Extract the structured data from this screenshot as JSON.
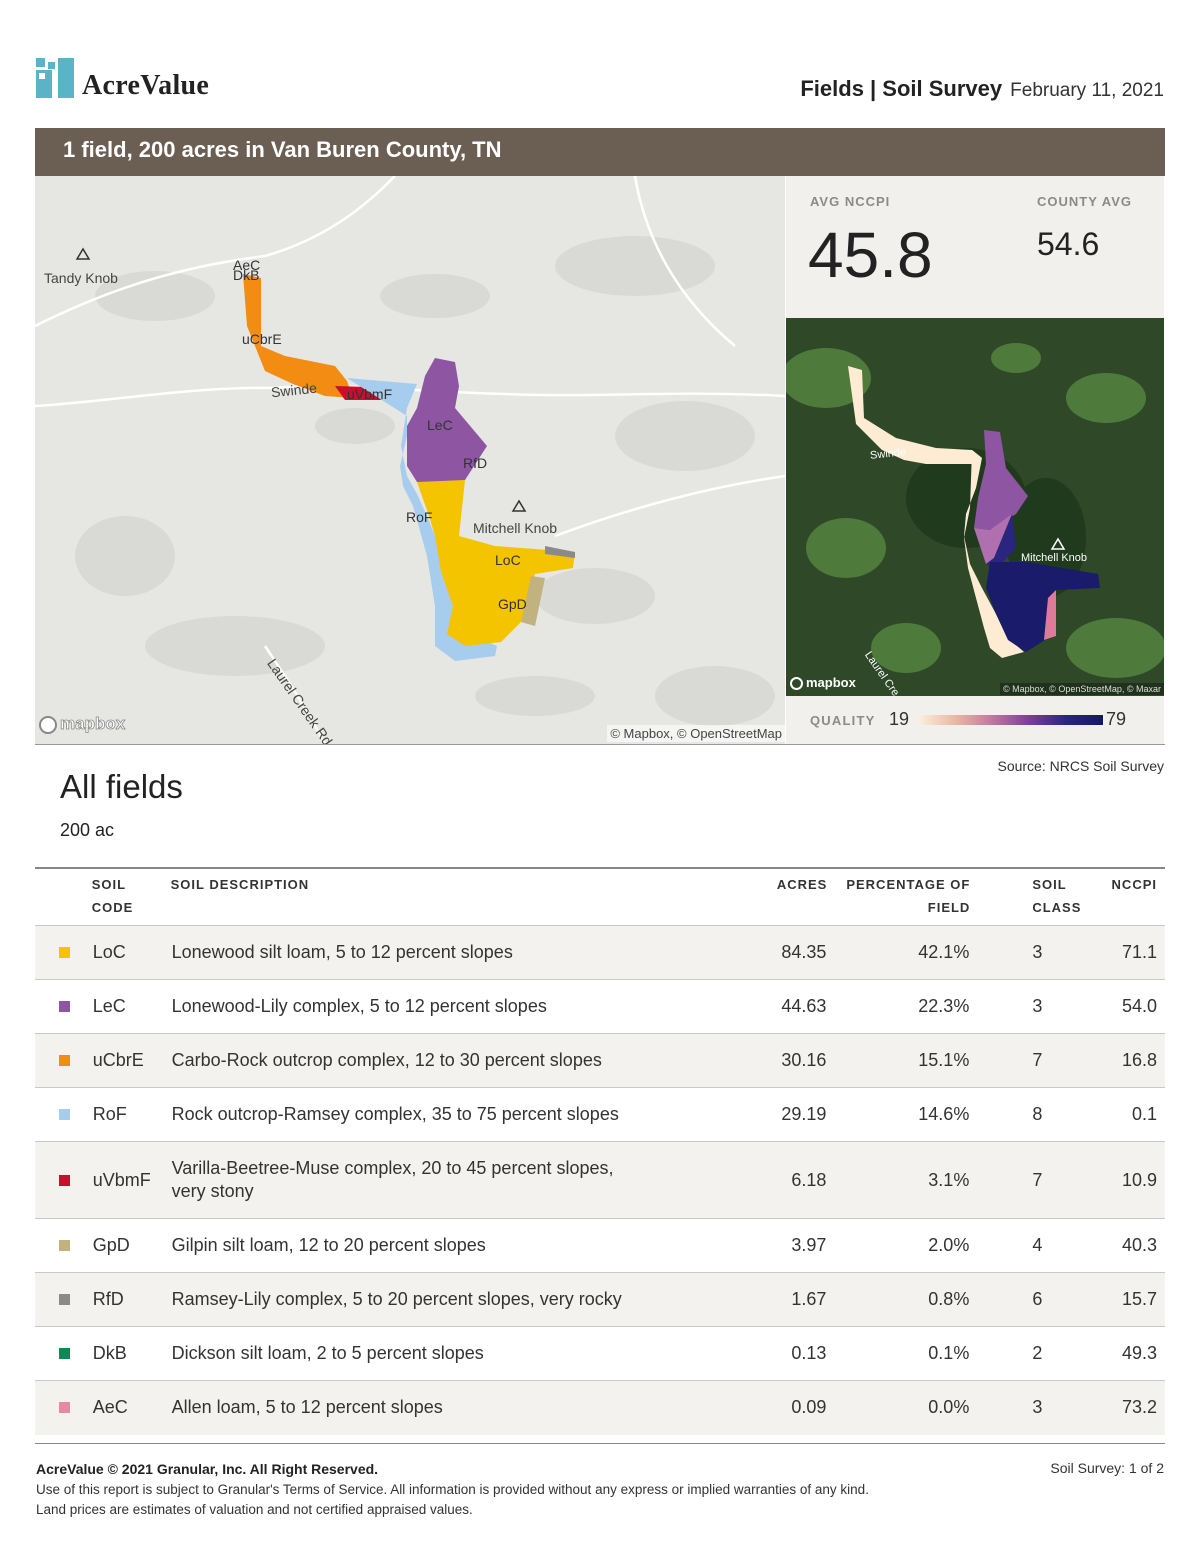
{
  "header": {
    "brand": "AcreValue",
    "section": "Fields | Soil Survey",
    "date": "February 11, 2021"
  },
  "banner": {
    "title": "1 field, 200 acres in Van Buren County, TN"
  },
  "map": {
    "places": [
      "Tandy Knob",
      "Mitchell Knob"
    ],
    "roads": [
      "Swinde",
      "Laurel Creek Rd"
    ],
    "soil_labels": [
      "AeC",
      "DkB",
      "uCbrE",
      "uVbmF",
      "LeC",
      "RfD",
      "RoF",
      "LoC",
      "GpD"
    ],
    "logo": "mapbox",
    "credit": "© Mapbox, © OpenStreetMap"
  },
  "stats": {
    "avg_label": "AVG NCCPI",
    "avg_value": "45.8",
    "county_label": "COUNTY AVG",
    "county_value": "54.6"
  },
  "satellite": {
    "place": "Mitchell Knob",
    "road": "Swinde",
    "road2": "Laurel Cre",
    "logo": "mapbox",
    "credit": "© Mapbox, © OpenStreetMap, © Maxar"
  },
  "quality": {
    "label": "QUALITY",
    "min": "19",
    "max": "79"
  },
  "source": "Source: NRCS Soil Survey",
  "all_fields": {
    "title": "All fields",
    "acres": "200 ac"
  },
  "table": {
    "headers": {
      "code": "SOIL CODE",
      "description": "SOIL DESCRIPTION",
      "acres": "ACRES",
      "percentage": "PERCENTAGE OF FIELD",
      "class": "SOIL CLASS",
      "nccpi": "NCCPI"
    },
    "rows": [
      {
        "color": "#f5c400",
        "code": "LoC",
        "description": "Lonewood silt loam, 5 to 12 percent slopes",
        "acres": "84.35",
        "percentage": "42.1%",
        "class": "3",
        "nccpi": "71.1"
      },
      {
        "color": "#8e55a3",
        "code": "LeC",
        "description": "Lonewood-Lily complex, 5 to 12 percent slopes",
        "acres": "44.63",
        "percentage": "22.3%",
        "class": "3",
        "nccpi": "54.0"
      },
      {
        "color": "#f28c12",
        "code": "uCbrE",
        "description": "Carbo-Rock outcrop complex, 12 to 30 percent slopes",
        "acres": "30.16",
        "percentage": "15.1%",
        "class": "7",
        "nccpi": "16.8"
      },
      {
        "color": "#a7cdee",
        "code": "RoF",
        "description": "Rock outcrop-Ramsey complex, 35 to 75 percent slopes",
        "acres": "29.19",
        "percentage": "14.6%",
        "class": "8",
        "nccpi": "0.1"
      },
      {
        "color": "#c8102e",
        "code": "uVbmF",
        "description": "Varilla-Beetree-Muse complex, 20 to 45 percent slopes, very stony",
        "acres": "6.18",
        "percentage": "3.1%",
        "class": "7",
        "nccpi": "10.9"
      },
      {
        "color": "#c2b27f",
        "code": "GpD",
        "description": "Gilpin silt loam, 12 to 20 percent slopes",
        "acres": "3.97",
        "percentage": "2.0%",
        "class": "4",
        "nccpi": "40.3"
      },
      {
        "color": "#8a8a8a",
        "code": "RfD",
        "description": "Ramsey-Lily complex, 5 to 20 percent slopes, very rocky",
        "acres": "1.67",
        "percentage": "0.8%",
        "class": "6",
        "nccpi": "15.7"
      },
      {
        "color": "#0b8a56",
        "code": "DkB",
        "description": "Dickson silt loam, 2 to 5 percent slopes",
        "acres": "0.13",
        "percentage": "0.1%",
        "class": "2",
        "nccpi": "49.3"
      },
      {
        "color": "#e68aa3",
        "code": "AeC",
        "description": "Allen loam, 5 to 12 percent slopes",
        "acres": "0.09",
        "percentage": "0.0%",
        "class": "3",
        "nccpi": "73.2"
      }
    ]
  },
  "footer": {
    "copyright": "AcreValue © 2021 Granular, Inc. All Right Reserved.",
    "line1": "Use of this report is subject to Granular's Terms of Service. All information is provided without any express or implied warranties of any kind.",
    "line2": "Land prices are estimates of valuation and not certified appraised values.",
    "page": "Soil Survey: 1 of 2"
  }
}
